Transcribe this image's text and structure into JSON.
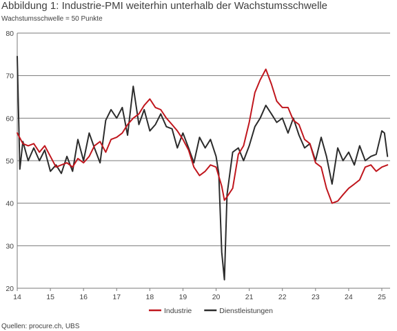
{
  "header": {
    "title": "Abbildung 1: Industrie-PMI weiterhin unterhalb der Wachstumsschwelle",
    "subtitle": "Wachstumsschwelle = 50 Punkte"
  },
  "footer": {
    "source": "Quellen: procure.ch, UBS"
  },
  "chart_data": {
    "type": "line",
    "title": "Abbildung 1: Industrie-PMI weiterhin unterhalb der Wachstumsschwelle",
    "subtitle": "Wachstumsschwelle = 50 Punkte",
    "xlabel": "",
    "ylabel": "",
    "xlim": [
      2014.0,
      2025.25
    ],
    "ylim": [
      20,
      80
    ],
    "yticks": [
      20,
      30,
      40,
      50,
      60,
      70,
      80
    ],
    "xticks": [
      2014,
      2015,
      2016,
      2017,
      2018,
      2019,
      2020,
      2021,
      2022,
      2023,
      2024,
      2025
    ],
    "xtick_labels": [
      "14",
      "15",
      "16",
      "17",
      "18",
      "19",
      "20",
      "21",
      "22",
      "23",
      "24",
      "25"
    ],
    "grid": "horizontal",
    "legend_position": "bottom-center",
    "series": [
      {
        "name": "Industrie",
        "color": "#c0161d",
        "x": [
          2014.0,
          2014.17,
          2014.33,
          2014.5,
          2014.67,
          2014.83,
          2015.0,
          2015.17,
          2015.33,
          2015.5,
          2015.67,
          2015.83,
          2016.0,
          2016.17,
          2016.33,
          2016.5,
          2016.67,
          2016.83,
          2017.0,
          2017.17,
          2017.33,
          2017.5,
          2017.67,
          2017.83,
          2018.0,
          2018.17,
          2018.33,
          2018.5,
          2018.67,
          2018.83,
          2019.0,
          2019.17,
          2019.33,
          2019.5,
          2019.67,
          2019.83,
          2020.0,
          2020.17,
          2020.25,
          2020.33,
          2020.5,
          2020.67,
          2020.83,
          2021.0,
          2021.17,
          2021.33,
          2021.5,
          2021.67,
          2021.83,
          2022.0,
          2022.17,
          2022.33,
          2022.5,
          2022.67,
          2022.83,
          2023.0,
          2023.17,
          2023.33,
          2023.5,
          2023.67,
          2023.83,
          2024.0,
          2024.17,
          2024.33,
          2024.5,
          2024.67,
          2024.83,
          2025.0,
          2025.17
        ],
        "values": [
          56.5,
          54.0,
          53.5,
          54.0,
          52.0,
          53.5,
          51.0,
          48.5,
          49.0,
          49.5,
          48.5,
          50.5,
          49.5,
          51.0,
          53.5,
          54.5,
          52.0,
          55.0,
          55.5,
          56.5,
          58.5,
          60.0,
          61.0,
          63.0,
          64.5,
          62.5,
          62.0,
          60.0,
          58.5,
          57.0,
          55.0,
          52.5,
          48.5,
          46.5,
          47.5,
          49.0,
          48.5,
          44.0,
          40.7,
          41.5,
          43.5,
          51.5,
          53.5,
          59.0,
          66.0,
          69.0,
          71.5,
          68.0,
          64.0,
          62.5,
          62.5,
          59.5,
          58.5,
          55.0,
          54.0,
          49.5,
          48.5,
          43.5,
          40.0,
          40.5,
          42.0,
          43.5,
          44.5,
          45.5,
          48.5,
          49.0,
          47.5,
          48.5,
          49.0
        ]
      },
      {
        "name": "Dienstleistungen",
        "color": "#2b2b2b",
        "x": [
          2014.0,
          2014.08,
          2014.17,
          2014.33,
          2014.5,
          2014.67,
          2014.83,
          2015.0,
          2015.17,
          2015.33,
          2015.5,
          2015.67,
          2015.83,
          2016.0,
          2016.17,
          2016.33,
          2016.5,
          2016.67,
          2016.83,
          2017.0,
          2017.17,
          2017.33,
          2017.5,
          2017.67,
          2017.83,
          2018.0,
          2018.17,
          2018.33,
          2018.5,
          2018.67,
          2018.83,
          2019.0,
          2019.17,
          2019.33,
          2019.5,
          2019.67,
          2019.83,
          2020.0,
          2020.08,
          2020.17,
          2020.25,
          2020.33,
          2020.5,
          2020.67,
          2020.83,
          2021.0,
          2021.17,
          2021.33,
          2021.5,
          2021.67,
          2021.83,
          2022.0,
          2022.17,
          2022.33,
          2022.5,
          2022.67,
          2022.83,
          2023.0,
          2023.17,
          2023.33,
          2023.5,
          2023.67,
          2023.83,
          2024.0,
          2024.17,
          2024.33,
          2024.5,
          2024.67,
          2024.83,
          2025.0,
          2025.08,
          2025.17
        ],
        "values": [
          74.5,
          48.0,
          54.5,
          50.0,
          53.0,
          50.0,
          52.5,
          47.5,
          49.0,
          47.0,
          51.0,
          47.5,
          55.0,
          50.0,
          56.5,
          53.0,
          49.5,
          59.5,
          62.0,
          60.0,
          62.5,
          56.0,
          67.5,
          58.5,
          62.0,
          57.0,
          58.5,
          61.0,
          58.0,
          57.5,
          53.0,
          56.5,
          53.0,
          49.5,
          55.5,
          53.0,
          55.0,
          51.0,
          47.0,
          28.5,
          22.0,
          42.0,
          52.0,
          53.0,
          50.0,
          53.5,
          58.0,
          60.0,
          63.0,
          61.0,
          59.0,
          60.0,
          56.5,
          60.0,
          56.0,
          53.0,
          54.0,
          50.0,
          55.5,
          51.0,
          44.5,
          53.0,
          50.0,
          52.0,
          49.0,
          53.5,
          50.0,
          51.0,
          51.5,
          57.0,
          56.5,
          51.0
        ]
      }
    ]
  }
}
